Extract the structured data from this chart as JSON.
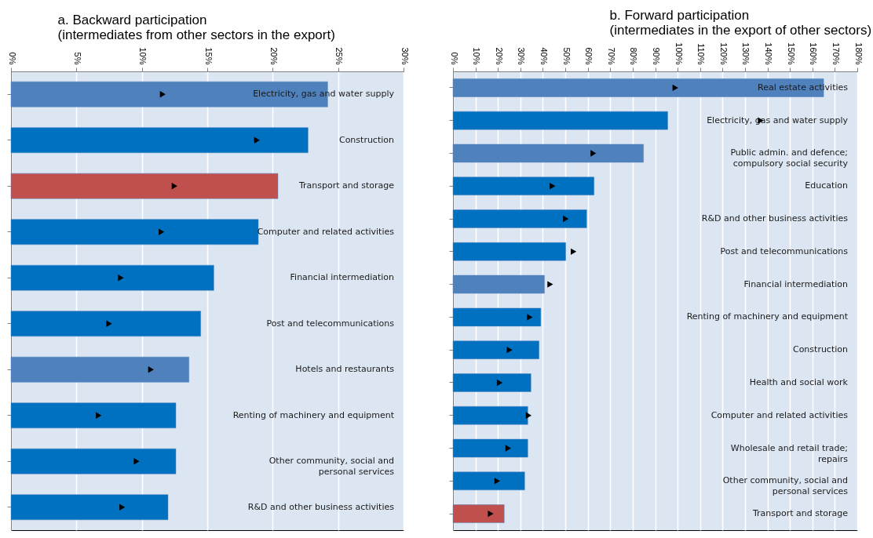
{
  "chart_data": [
    {
      "type": "bar",
      "orientation": "horizontal",
      "title": "a. Backward participation",
      "subtitle": "(intermediates from other sectors in the export)",
      "categories": [
        "Electricity, gas and water supply",
        "Construction",
        "Transport and storage",
        "Computer and related activities",
        "Financial intermediation",
        "Post and telecommunications",
        "Hotels and restaurants",
        "Renting of machinery and equipment",
        "Other community, social and personal services",
        "R&D and other business activities"
      ],
      "series": [
        {
          "type": "bar",
          "colors": [
            "#4f81bd",
            "#0070c0",
            "#c0504d",
            "#0070c0",
            "#0070c0",
            "#0070c0",
            "#4f81bd",
            "#0070c0",
            "#0070c0",
            "#0070c0"
          ],
          "values": [
            24.2,
            22.7,
            20.4,
            18.9,
            15.5,
            14.5,
            13.6,
            12.6,
            12.6,
            12.0
          ]
        },
        {
          "type": "scatter",
          "color": "#000000",
          "marker": "triangle",
          "values": [
            11.6,
            18.8,
            12.5,
            11.5,
            8.4,
            7.5,
            10.7,
            6.7,
            9.6,
            8.5
          ]
        }
      ],
      "xlim": [
        0,
        30
      ],
      "xticks": [
        {
          "value": 0,
          "label": "0%"
        },
        {
          "value": 5,
          "label": "5%"
        },
        {
          "value": 10,
          "label": "10%"
        },
        {
          "value": 15,
          "label": "15%"
        },
        {
          "value": 20,
          "label": "20%"
        },
        {
          "value": 25,
          "label": "25%"
        },
        {
          "value": 30,
          "label": "30%"
        }
      ],
      "grid": "x",
      "tick_labels": "x"
    },
    {
      "type": "bar",
      "orientation": "horizontal",
      "title": "b. Forward participation",
      "subtitle": "(intermediates in the export of other sectors)",
      "categories": [
        "Real estate activities",
        "Electricity, gas and water supply",
        "Public admin. and defence; compulsory social security",
        "Education",
        "R&D and other business activities",
        "Post and telecommunications",
        "Financial intermediation",
        "Renting of machinery and equipment",
        "Construction",
        "Health and social work",
        "Computer and related activities",
        "Wholesale and retail trade; repairs",
        "Other community, social and personal services",
        "Transport and storage"
      ],
      "series": [
        {
          "type": "bar",
          "colors": [
            "#4f81bd",
            "#0070c0",
            "#4f81bd",
            "#0070c0",
            "#0070c0",
            "#0070c0",
            "#4f81bd",
            "#0070c0",
            "#0070c0",
            "#0070c0",
            "#0070c0",
            "#0070c0",
            "#0070c0",
            "#c0504d"
          ],
          "values": [
            165,
            95.6,
            84.8,
            62.8,
            59.5,
            50.2,
            40.7,
            39.1,
            38.3,
            34.7,
            33.3,
            33.3,
            31.9,
            22.8
          ]
        },
        {
          "type": "scatter",
          "color": "#000000",
          "marker": "triangle",
          "values": [
            99,
            137,
            62.5,
            44.3,
            50.2,
            53.7,
            43.3,
            34.2,
            25.2,
            20.8,
            33.7,
            24.6,
            19.7,
            16.8
          ]
        }
      ],
      "xlim": [
        0,
        180
      ],
      "xticks": [
        {
          "value": 0,
          "label": "0%"
        },
        {
          "value": 10,
          "label": "10%"
        },
        {
          "value": 20,
          "label": "20%"
        },
        {
          "value": 30,
          "label": "30%"
        },
        {
          "value": 40,
          "label": "40%"
        },
        {
          "value": 50,
          "label": "50%"
        },
        {
          "value": 60,
          "label": "60%"
        },
        {
          "value": 70,
          "label": "70%"
        },
        {
          "value": 80,
          "label": "80%"
        },
        {
          "value": 90,
          "label": "90%"
        },
        {
          "value": 100,
          "label": "100%"
        },
        {
          "value": 110,
          "label": "110%"
        },
        {
          "value": 120,
          "label": "120%"
        },
        {
          "value": 130,
          "label": "130%"
        },
        {
          "value": 140,
          "label": "140%"
        },
        {
          "value": 150,
          "label": "150%"
        },
        {
          "value": 160,
          "label": "160%"
        },
        {
          "value": 170,
          "label": "170%"
        },
        {
          "value": 180,
          "label": "180%"
        }
      ],
      "grid": "x",
      "tick_labels": "x"
    }
  ]
}
